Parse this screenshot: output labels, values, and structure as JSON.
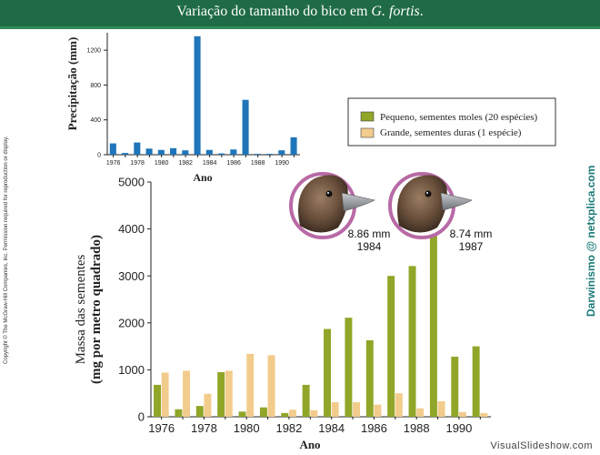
{
  "slide": {
    "title_main": "Variação do tamanho do bico em ",
    "title_species": "G. fortis",
    "title_end": ".",
    "copyright": "Copyright © The McGraw-Hill Companies, Inc. Permission required for reproduction or display.",
    "watermark": "Darwinismo @ netxplica.com",
    "site": "VisualSlideshow.com"
  },
  "chart_data": [
    {
      "type": "bar",
      "title": "",
      "xlabel": "Ano",
      "ylabel": "Precipitação (mm)",
      "ylim": [
        0,
        1400
      ],
      "yticks": [
        0,
        400,
        800,
        1200
      ],
      "x": [
        1976,
        1977,
        1978,
        1979,
        1980,
        1981,
        1982,
        1983,
        1984,
        1985,
        1986,
        1987,
        1988,
        1989,
        1990,
        1991
      ],
      "xtick_labels": [
        "1976",
        "1978",
        "1980",
        "1982",
        "1984",
        "1986",
        "1988",
        "1990"
      ],
      "series": [
        {
          "color": "#1f75b9",
          "values": [
            130,
            20,
            140,
            70,
            55,
            75,
            50,
            1360,
            55,
            15,
            60,
            630,
            10,
            10,
            50,
            200
          ]
        }
      ],
      "grid": false
    },
    {
      "type": "bar",
      "title": "",
      "xlabel": "Ano",
      "ylabel_line1": "Massa das sementes",
      "ylabel_line2": "(mg por metro quadrado)",
      "ylim": [
        0,
        5000
      ],
      "yticks": [
        0,
        1000,
        2000,
        3000,
        4000,
        5000
      ],
      "x": [
        1976,
        1977,
        1978,
        1979,
        1980,
        1981,
        1982,
        1983,
        1984,
        1985,
        1986,
        1987,
        1988,
        1989,
        1990,
        1991
      ],
      "xtick_labels": [
        "1976",
        "1978",
        "1980",
        "1982",
        "1984",
        "1986",
        "1988",
        "1990"
      ],
      "series": [
        {
          "name": "Pequeno, sementes moles (20 espécies)",
          "color": "#8fa628",
          "values": [
            680,
            160,
            230,
            950,
            110,
            200,
            80,
            680,
            1870,
            2110,
            1630,
            3000,
            3210,
            4310,
            1280,
            1500
          ]
        },
        {
          "name": "Grande, sementes duras (1 espécie)",
          "color": "#f2cc8c",
          "values": [
            940,
            980,
            490,
            980,
            1340,
            1310,
            150,
            140,
            310,
            310,
            260,
            500,
            180,
            330,
            100,
            80
          ]
        }
      ],
      "legend_position": "top-right",
      "grid": false,
      "annotations": [
        {
          "value": "8.86 mm",
          "year": "1984"
        },
        {
          "value": "8.74 mm",
          "year": "1987"
        }
      ]
    }
  ]
}
